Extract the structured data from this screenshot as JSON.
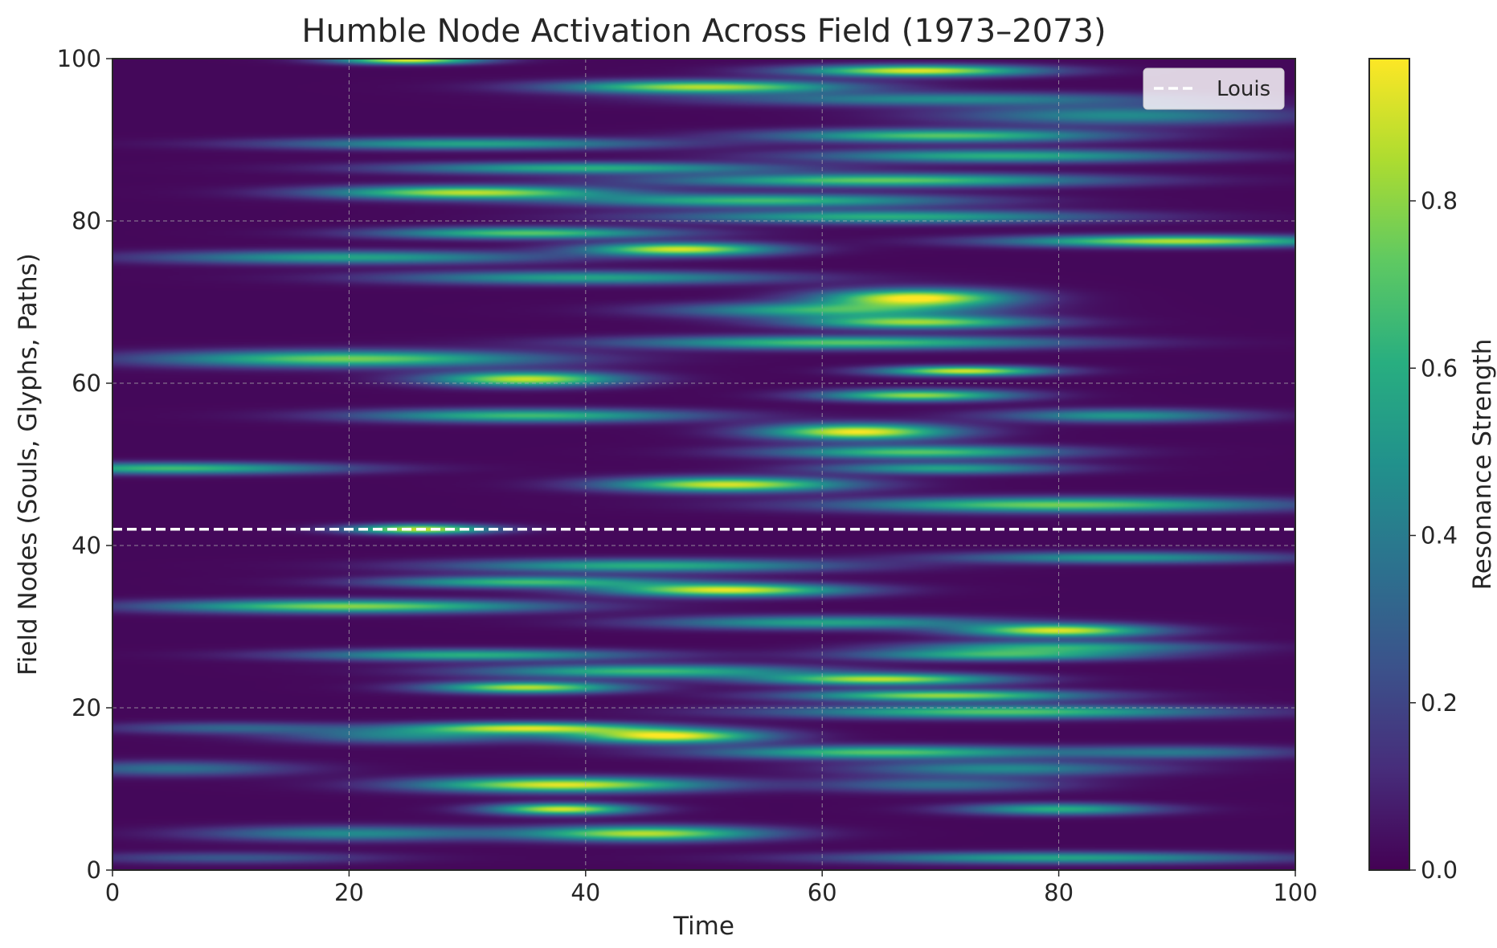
{
  "chart_data": {
    "type": "heatmap",
    "title": "Humble Node Activation Across Field (1973–2073)",
    "xlabel": "Time",
    "ylabel": "Field Nodes (Souls, Glyphs, Paths)",
    "xlim": [
      0,
      100
    ],
    "ylim": [
      0,
      100
    ],
    "x_ticks": [
      "0",
      "20",
      "40",
      "60",
      "80",
      "100"
    ],
    "y_ticks": [
      "0",
      "20",
      "40",
      "60",
      "80",
      "100"
    ],
    "grid": true,
    "colormap": "viridis",
    "colorbar": {
      "label": "Resonance Strength",
      "range": [
        0.0,
        0.97
      ],
      "ticks": [
        "0.0",
        "0.2",
        "0.4",
        "0.6",
        "0.8"
      ]
    },
    "reference_line": {
      "name": "Louis",
      "y": 42,
      "style": "dashed",
      "color": "#ffffff"
    },
    "legend": {
      "entries": [
        "Louis"
      ],
      "position": "top-right"
    },
    "bands": [
      {
        "node": 1.5,
        "width": 0.7,
        "peaks": [
          {
            "t": 80,
            "v": 0.55,
            "s": 18
          },
          {
            "t": 10,
            "v": 0.25,
            "s": 12
          }
        ]
      },
      {
        "node": 4.5,
        "width": 0.9,
        "peaks": [
          {
            "t": 45,
            "v": 0.85,
            "s": 10
          },
          {
            "t": 20,
            "v": 0.45,
            "s": 12
          }
        ]
      },
      {
        "node": 7.5,
        "width": 0.7,
        "peaks": [
          {
            "t": 38,
            "v": 0.9,
            "s": 6
          },
          {
            "t": 80,
            "v": 0.6,
            "s": 8
          }
        ]
      },
      {
        "node": 10.5,
        "width": 0.9,
        "peaks": [
          {
            "t": 38,
            "v": 0.92,
            "s": 12
          },
          {
            "t": 70,
            "v": 0.35,
            "s": 10
          }
        ]
      },
      {
        "node": 12.5,
        "width": 0.9,
        "peaks": [
          {
            "t": 5,
            "v": 0.35,
            "s": 10
          },
          {
            "t": 75,
            "v": 0.45,
            "s": 12
          }
        ]
      },
      {
        "node": 14.5,
        "width": 0.8,
        "peaks": [
          {
            "t": 65,
            "v": 0.7,
            "s": 14
          },
          {
            "t": 90,
            "v": 0.35,
            "s": 10
          }
        ]
      },
      {
        "node": 16.5,
        "width": 0.9,
        "peaks": [
          {
            "t": 47,
            "v": 0.95,
            "s": 8
          },
          {
            "t": 25,
            "v": 0.4,
            "s": 10
          }
        ]
      },
      {
        "node": 17.5,
        "width": 0.7,
        "peaks": [
          {
            "t": 35,
            "v": 0.85,
            "s": 10
          },
          {
            "t": 10,
            "v": 0.3,
            "s": 10
          }
        ]
      },
      {
        "node": 19.5,
        "width": 0.8,
        "peaks": [
          {
            "t": 75,
            "v": 0.7,
            "s": 18
          }
        ]
      },
      {
        "node": 21.5,
        "width": 0.7,
        "peaks": [
          {
            "t": 70,
            "v": 0.8,
            "s": 12
          }
        ]
      },
      {
        "node": 22.5,
        "width": 0.7,
        "peaks": [
          {
            "t": 35,
            "v": 0.85,
            "s": 8
          }
        ]
      },
      {
        "node": 23.5,
        "width": 0.7,
        "peaks": [
          {
            "t": 65,
            "v": 0.85,
            "s": 10
          }
        ]
      },
      {
        "node": 24.5,
        "width": 0.8,
        "peaks": [
          {
            "t": 45,
            "v": 0.65,
            "s": 14
          }
        ]
      },
      {
        "node": 26.5,
        "width": 0.7,
        "peaks": [
          {
            "t": 30,
            "v": 0.6,
            "s": 14
          },
          {
            "t": 75,
            "v": 0.6,
            "s": 12
          }
        ]
      },
      {
        "node": 27.5,
        "width": 0.7,
        "peaks": [
          {
            "t": 80,
            "v": 0.55,
            "s": 12
          }
        ]
      },
      {
        "node": 29.5,
        "width": 0.8,
        "peaks": [
          {
            "t": 80,
            "v": 0.9,
            "s": 8
          }
        ]
      },
      {
        "node": 30.5,
        "width": 0.8,
        "peaks": [
          {
            "t": 60,
            "v": 0.55,
            "s": 14
          }
        ]
      },
      {
        "node": 32.5,
        "width": 0.8,
        "peaks": [
          {
            "t": 20,
            "v": 0.78,
            "s": 16
          }
        ]
      },
      {
        "node": 34.5,
        "width": 0.8,
        "peaks": [
          {
            "t": 52,
            "v": 0.92,
            "s": 10
          }
        ]
      },
      {
        "node": 35.5,
        "width": 0.7,
        "peaks": [
          {
            "t": 35,
            "v": 0.65,
            "s": 12
          }
        ]
      },
      {
        "node": 37.5,
        "width": 0.8,
        "peaks": [
          {
            "t": 45,
            "v": 0.6,
            "s": 16
          }
        ]
      },
      {
        "node": 38.5,
        "width": 0.7,
        "peaks": [
          {
            "t": 85,
            "v": 0.5,
            "s": 14
          }
        ]
      },
      {
        "node": 42.0,
        "width": 0.6,
        "peaks": [
          {
            "t": 26,
            "v": 0.9,
            "s": 6
          }
        ]
      },
      {
        "node": 45.0,
        "width": 0.9,
        "peaks": [
          {
            "t": 80,
            "v": 0.75,
            "s": 18
          }
        ]
      },
      {
        "node": 47.5,
        "width": 0.9,
        "peaks": [
          {
            "t": 52,
            "v": 0.9,
            "s": 10
          }
        ]
      },
      {
        "node": 49.5,
        "width": 0.7,
        "peaks": [
          {
            "t": 5,
            "v": 0.65,
            "s": 14
          },
          {
            "t": 70,
            "v": 0.55,
            "s": 10
          }
        ]
      },
      {
        "node": 51.5,
        "width": 0.8,
        "peaks": [
          {
            "t": 68,
            "v": 0.7,
            "s": 12
          }
        ]
      },
      {
        "node": 54.0,
        "width": 1.0,
        "peaks": [
          {
            "t": 63,
            "v": 0.95,
            "s": 8
          }
        ]
      },
      {
        "node": 56.0,
        "width": 0.8,
        "peaks": [
          {
            "t": 35,
            "v": 0.65,
            "s": 14
          },
          {
            "t": 85,
            "v": 0.5,
            "s": 10
          }
        ]
      },
      {
        "node": 58.5,
        "width": 0.7,
        "peaks": [
          {
            "t": 68,
            "v": 0.8,
            "s": 8
          }
        ]
      },
      {
        "node": 60.5,
        "width": 0.9,
        "peaks": [
          {
            "t": 35,
            "v": 0.88,
            "s": 8
          }
        ]
      },
      {
        "node": 61.5,
        "width": 0.6,
        "peaks": [
          {
            "t": 72,
            "v": 0.9,
            "s": 7
          }
        ]
      },
      {
        "node": 63.0,
        "width": 1.0,
        "peaks": [
          {
            "t": 20,
            "v": 0.75,
            "s": 16
          }
        ]
      },
      {
        "node": 65.0,
        "width": 0.8,
        "peaks": [
          {
            "t": 62,
            "v": 0.7,
            "s": 18
          }
        ]
      },
      {
        "node": 67.5,
        "width": 0.8,
        "peaks": [
          {
            "t": 68,
            "v": 0.8,
            "s": 10
          }
        ]
      },
      {
        "node": 69.0,
        "width": 0.9,
        "peaks": [
          {
            "t": 60,
            "v": 0.6,
            "s": 12
          }
        ]
      },
      {
        "node": 70.5,
        "width": 1.1,
        "peaks": [
          {
            "t": 68,
            "v": 0.97,
            "s": 8
          }
        ]
      },
      {
        "node": 73.0,
        "width": 0.8,
        "peaks": [
          {
            "t": 40,
            "v": 0.55,
            "s": 16
          }
        ]
      },
      {
        "node": 75.5,
        "width": 0.8,
        "peaks": [
          {
            "t": 20,
            "v": 0.55,
            "s": 16
          }
        ]
      },
      {
        "node": 76.5,
        "width": 0.8,
        "peaks": [
          {
            "t": 48,
            "v": 0.9,
            "s": 8
          }
        ]
      },
      {
        "node": 77.5,
        "width": 0.7,
        "peaks": [
          {
            "t": 90,
            "v": 0.85,
            "s": 14
          }
        ]
      },
      {
        "node": 78.5,
        "width": 0.7,
        "peaks": [
          {
            "t": 35,
            "v": 0.7,
            "s": 12
          }
        ]
      },
      {
        "node": 80.5,
        "width": 0.8,
        "peaks": [
          {
            "t": 65,
            "v": 0.6,
            "s": 18
          }
        ]
      },
      {
        "node": 82.5,
        "width": 0.8,
        "peaks": [
          {
            "t": 55,
            "v": 0.65,
            "s": 16
          }
        ]
      },
      {
        "node": 83.5,
        "width": 0.8,
        "peaks": [
          {
            "t": 30,
            "v": 0.85,
            "s": 12
          }
        ]
      },
      {
        "node": 85.0,
        "width": 0.8,
        "peaks": [
          {
            "t": 65,
            "v": 0.72,
            "s": 18
          }
        ]
      },
      {
        "node": 86.5,
        "width": 0.7,
        "peaks": [
          {
            "t": 40,
            "v": 0.6,
            "s": 16
          }
        ]
      },
      {
        "node": 88.0,
        "width": 0.8,
        "peaks": [
          {
            "t": 75,
            "v": 0.6,
            "s": 16
          }
        ]
      },
      {
        "node": 89.5,
        "width": 0.7,
        "peaks": [
          {
            "t": 30,
            "v": 0.55,
            "s": 16
          }
        ]
      },
      {
        "node": 90.5,
        "width": 0.8,
        "peaks": [
          {
            "t": 70,
            "v": 0.7,
            "s": 14
          }
        ]
      },
      {
        "node": 93.0,
        "width": 1.2,
        "peaks": [
          {
            "t": 85,
            "v": 0.45,
            "s": 14
          }
        ]
      },
      {
        "node": 95.0,
        "width": 0.8,
        "peaks": [
          {
            "t": 70,
            "v": 0.45,
            "s": 18
          }
        ]
      },
      {
        "node": 96.5,
        "width": 0.8,
        "peaks": [
          {
            "t": 50,
            "v": 0.85,
            "s": 12
          }
        ]
      },
      {
        "node": 98.5,
        "width": 0.7,
        "peaks": [
          {
            "t": 68,
            "v": 0.92,
            "s": 10
          }
        ]
      },
      {
        "node": 99.8,
        "width": 0.5,
        "peaks": [
          {
            "t": 25,
            "v": 0.92,
            "s": 6
          }
        ]
      }
    ]
  }
}
